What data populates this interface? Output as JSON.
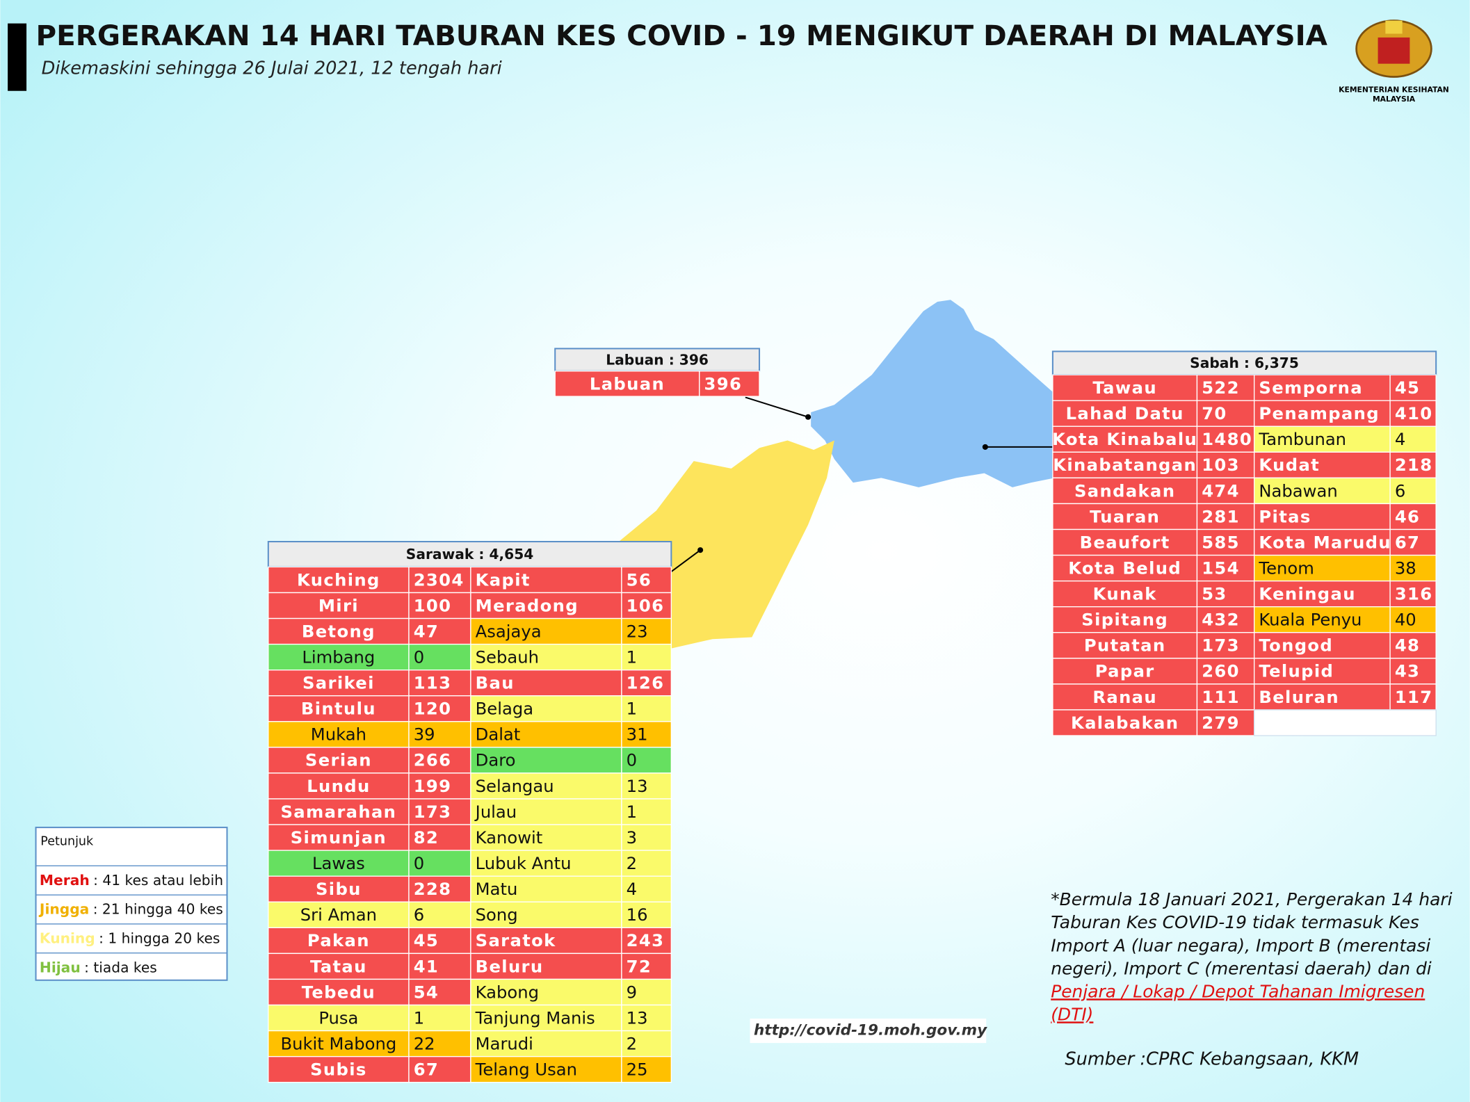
{
  "header": {
    "title": "PERGERAKAN 14 HARI TABURAN KES COVID - 19 MENGIKUT DAERAH DI MALAYSIA",
    "subtitle": "Dikemaskini sehingga 26 Julai 2021, 12 tengah hari",
    "logo_text": [
      "KEMENTERIAN KESIHATAN",
      "MALAYSIA"
    ]
  },
  "labuan": {
    "title": "Labuan : 396",
    "left": [
      {
        "name": "Labuan",
        "cases": 396,
        "color": "#f44e4e"
      }
    ]
  },
  "sabah": {
    "title": "Sabah : 6,375",
    "left": [
      {
        "name": "Tawau",
        "cases": 522,
        "color": "#f44e4e"
      },
      {
        "name": "Lahad Datu",
        "cases": 70,
        "color": "#f44e4e"
      },
      {
        "name": "Kota Kinabalu",
        "cases": 1480,
        "color": "#f44e4e"
      },
      {
        "name": "Kinabatangan",
        "cases": 103,
        "color": "#f44e4e"
      },
      {
        "name": "Sandakan",
        "cases": 474,
        "color": "#f44e4e"
      },
      {
        "name": "Tuaran",
        "cases": 281,
        "color": "#f44e4e"
      },
      {
        "name": "Beaufort",
        "cases": 585,
        "color": "#f44e4e"
      },
      {
        "name": "Kota Belud",
        "cases": 154,
        "color": "#f44e4e"
      },
      {
        "name": "Kunak",
        "cases": 53,
        "color": "#f44e4e"
      },
      {
        "name": "Sipitang",
        "cases": 432,
        "color": "#f44e4e"
      },
      {
        "name": "Putatan",
        "cases": 173,
        "color": "#f44e4e"
      },
      {
        "name": "Papar",
        "cases": 260,
        "color": "#f44e4e"
      },
      {
        "name": "Ranau",
        "cases": 111,
        "color": "#f44e4e"
      },
      {
        "name": "Kalabakan",
        "cases": 279,
        "color": "#f44e4e"
      }
    ],
    "right": [
      {
        "name": "Semporna",
        "cases": 45,
        "color": "#f44e4e"
      },
      {
        "name": "Penampang",
        "cases": 410,
        "color": "#f44e4e"
      },
      {
        "name": "Tambunan",
        "cases": 4,
        "color": "#fafa6a"
      },
      {
        "name": "Kudat",
        "cases": 218,
        "color": "#f44e4e"
      },
      {
        "name": "Nabawan",
        "cases": 6,
        "color": "#fafa6a"
      },
      {
        "name": "Pitas",
        "cases": 46,
        "color": "#f44e4e"
      },
      {
        "name": "Kota Marudu",
        "cases": 67,
        "color": "#f44e4e"
      },
      {
        "name": "Tenom",
        "cases": 38,
        "color": "#ffc000"
      },
      {
        "name": "Keningau",
        "cases": 316,
        "color": "#f44e4e"
      },
      {
        "name": "Kuala Penyu",
        "cases": 40,
        "color": "#ffc000"
      },
      {
        "name": "Tongod",
        "cases": 48,
        "color": "#f44e4e"
      },
      {
        "name": "Telupid",
        "cases": 43,
        "color": "#f44e4e"
      },
      {
        "name": "Beluran",
        "cases": 117,
        "color": "#f44e4e"
      }
    ]
  },
  "sarawak": {
    "title": "Sarawak : 4,654",
    "left": [
      {
        "name": "Kuching",
        "cases": 2304,
        "color": "#f44e4e"
      },
      {
        "name": "Miri",
        "cases": 100,
        "color": "#f44e4e"
      },
      {
        "name": "Betong",
        "cases": 47,
        "color": "#f44e4e"
      },
      {
        "name": "Limbang",
        "cases": 0,
        "color": "#66e060"
      },
      {
        "name": "Sarikei",
        "cases": 113,
        "color": "#f44e4e"
      },
      {
        "name": "Bintulu",
        "cases": 120,
        "color": "#f44e4e"
      },
      {
        "name": "Mukah",
        "cases": 39,
        "color": "#ffc000"
      },
      {
        "name": "Serian",
        "cases": 266,
        "color": "#f44e4e"
      },
      {
        "name": "Lundu",
        "cases": 199,
        "color": "#f44e4e"
      },
      {
        "name": "Samarahan",
        "cases": 173,
        "color": "#f44e4e"
      },
      {
        "name": "Simunjan",
        "cases": 82,
        "color": "#f44e4e"
      },
      {
        "name": "Lawas",
        "cases": 0,
        "color": "#66e060"
      },
      {
        "name": "Sibu",
        "cases": 228,
        "color": "#f44e4e"
      },
      {
        "name": "Sri Aman",
        "cases": 6,
        "color": "#fafa6a"
      },
      {
        "name": "Pakan",
        "cases": 45,
        "color": "#f44e4e"
      },
      {
        "name": "Tatau",
        "cases": 41,
        "color": "#f44e4e"
      },
      {
        "name": "Tebedu",
        "cases": 54,
        "color": "#f44e4e"
      },
      {
        "name": "Pusa",
        "cases": 1,
        "color": "#fafa6a"
      },
      {
        "name": "Bukit Mabong",
        "cases": 22,
        "color": "#ffc000"
      },
      {
        "name": "Subis",
        "cases": 67,
        "color": "#f44e4e"
      }
    ],
    "right": [
      {
        "name": "Kapit",
        "cases": 56,
        "color": "#f44e4e"
      },
      {
        "name": "Meradong",
        "cases": 106,
        "color": "#f44e4e"
      },
      {
        "name": "Asajaya",
        "cases": 23,
        "color": "#ffc000"
      },
      {
        "name": "Sebauh",
        "cases": 1,
        "color": "#fafa6a"
      },
      {
        "name": "Bau",
        "cases": 126,
        "color": "#f44e4e"
      },
      {
        "name": "Belaga",
        "cases": 1,
        "color": "#fafa6a"
      },
      {
        "name": "Dalat",
        "cases": 31,
        "color": "#ffc000"
      },
      {
        "name": "Daro",
        "cases": 0,
        "color": "#66e060"
      },
      {
        "name": "Selangau",
        "cases": 13,
        "color": "#fafa6a"
      },
      {
        "name": "Julau",
        "cases": 1,
        "color": "#fafa6a"
      },
      {
        "name": "Kanowit",
        "cases": 3,
        "color": "#fafa6a"
      },
      {
        "name": "Lubuk Antu",
        "cases": 2,
        "color": "#fafa6a"
      },
      {
        "name": "Matu",
        "cases": 4,
        "color": "#fafa6a"
      },
      {
        "name": "Song",
        "cases": 16,
        "color": "#fafa6a"
      },
      {
        "name": "Saratok",
        "cases": 243,
        "color": "#f44e4e"
      },
      {
        "name": "Beluru",
        "cases": 72,
        "color": "#f44e4e"
      },
      {
        "name": "Kabong",
        "cases": 9,
        "color": "#fafa6a"
      },
      {
        "name": "Tanjung Manis",
        "cases": 13,
        "color": "#fafa6a"
      },
      {
        "name": "Marudi",
        "cases": 2,
        "color": "#fafa6a"
      },
      {
        "name": "Telang Usan",
        "cases": 25,
        "color": "#ffc000"
      }
    ]
  },
  "legend": {
    "title": "Petunjuk",
    "items": [
      {
        "term": "Merah",
        "text": ": 41 kes atau lebih",
        "color": "#e01010"
      },
      {
        "term": "Jingga",
        "text": ": 21 hingga 40 kes",
        "color": "#f0b000"
      },
      {
        "term": "Kuning",
        "text": ": 1 hingga 20 kes",
        "color": "#fff080"
      },
      {
        "term": "Hijau",
        "text": ": tiada kes",
        "color": "#80c040"
      }
    ]
  },
  "note": {
    "lines": [
      "*Bermula 18 Januari 2021, Pergerakan 14 hari",
      "Taburan Kes COVID-19 tidak termasuk Kes",
      "Import A (luar negara), Import B (merentasi",
      "negeri), Import C (merentasi daerah) dan di"
    ],
    "link_lines": [
      "Penjara / Lokap / Depot Tahanan Imigresen",
      "(DTI)"
    ]
  },
  "url": "http://covid-19.moh.gov.my",
  "source": "Sumber :CPRC Kebangsaan,  KKM"
}
